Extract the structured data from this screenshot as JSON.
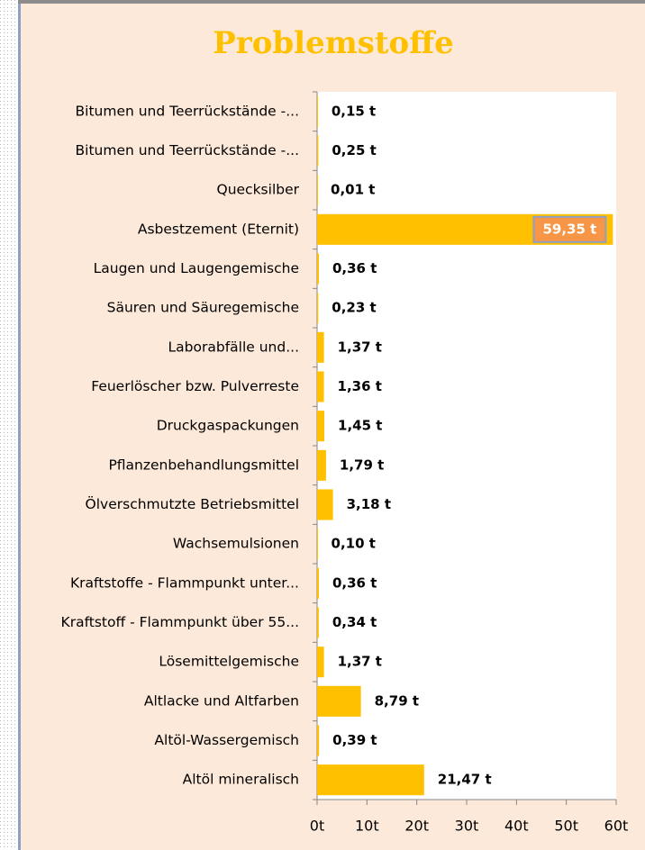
{
  "chart_data": {
    "type": "bar",
    "orientation": "horizontal",
    "title": "Problemstoffe",
    "categories": [
      "Bitumen und Teerrückstände -...",
      "Bitumen und Teerrückstände -...",
      "Quecksilber",
      "Asbestzement (Eternit)",
      "Laugen und Laugengemische",
      "Säuren und Säuregemische",
      "Laborabfälle und...",
      "Feuerlöscher bzw. Pulverreste",
      "Druckgaspackungen",
      "Pflanzenbehandlungsmittel",
      "Ölverschmutzte Betriebsmittel",
      "Wachsemulsionen",
      "Kraftstoffe - Flammpunkt unter...",
      "Kraftstoff - Flammpunkt über 55...",
      "Lösemittelgemische",
      "Altlacke und Altfarben",
      "Altöl-Wassergemisch",
      "Altöl mineralisch"
    ],
    "values": [
      0.15,
      0.25,
      0.01,
      59.35,
      0.36,
      0.23,
      1.37,
      1.36,
      1.45,
      1.79,
      3.18,
      0.1,
      0.36,
      0.34,
      1.37,
      8.79,
      0.39,
      21.47
    ],
    "value_labels": [
      "0,15 t",
      "0,25 t",
      "0,01 t",
      "59,35 t",
      "0,36 t",
      "0,23 t",
      "1,37 t",
      "1,36 t",
      "1,45 t",
      "1,79 t",
      "3,18 t",
      "0,10 t",
      "0,36 t",
      "0,34 t",
      "1,37 t",
      "8,79 t",
      "0,39 t",
      "21,47 t"
    ],
    "color": "#ffc000",
    "xlim": [
      0,
      60
    ],
    "xticks": [
      {
        "value": 0,
        "label": "0t"
      },
      {
        "value": 10,
        "label": "10t"
      },
      {
        "value": 20,
        "label": "20t"
      },
      {
        "value": 30,
        "label": "30t"
      },
      {
        "value": 40,
        "label": "40t"
      },
      {
        "value": 50,
        "label": "50t"
      },
      {
        "value": 60,
        "label": "60t"
      }
    ]
  }
}
